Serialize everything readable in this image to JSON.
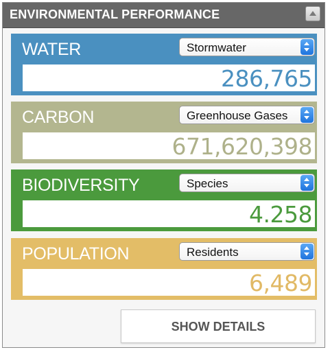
{
  "panel": {
    "title": "ENVIRONMENTAL PERFORMANCE",
    "collapse_icon": "triangle-up-icon"
  },
  "metrics": [
    {
      "label": "WATER",
      "selected": "Stormwater",
      "value": "286,765",
      "color": "#4a90c0",
      "value_color": "#4a90c0"
    },
    {
      "label": "CARBON",
      "selected": "Greenhouse Gases",
      "value": "671,620,398",
      "color": "#b3b68f",
      "value_color": "#aeb18a"
    },
    {
      "label": "BIODIVERSITY",
      "selected": "Species",
      "value": "4.258",
      "color": "#4b9a3d",
      "value_color": "#4b9a3d"
    },
    {
      "label": "POPULATION",
      "selected": "Residents",
      "value": "6,489",
      "color": "#e3bd67",
      "value_color": "#e1b965"
    }
  ],
  "footer": {
    "show_details_label": "SHOW DETAILS"
  }
}
